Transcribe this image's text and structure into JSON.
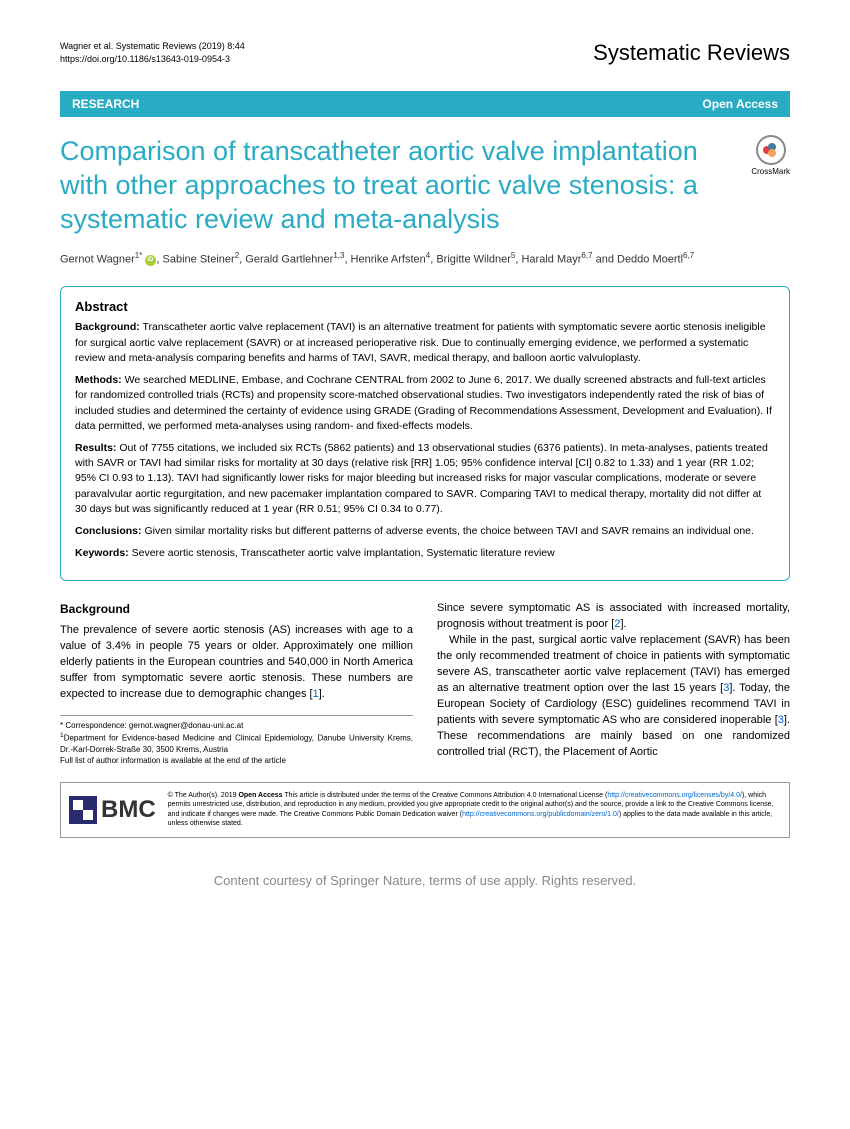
{
  "header": {
    "citation_line1": "Wagner et al. Systematic Reviews          (2019) 8:44",
    "citation_line2": "https://doi.org/10.1186/s13643-019-0954-3",
    "journal": "Systematic Reviews"
  },
  "badge": {
    "left": "RESEARCH",
    "right": "Open Access"
  },
  "crossmark_label": "CrossMark",
  "title": "Comparison of transcatheter aortic valve implantation with other approaches to treat aortic valve stenosis: a systematic review and meta-analysis",
  "authors_html": "Gernot Wagner<sup>1*</sup> <span class='orcid'></span>, Sabine Steiner<sup>2</sup>, Gerald Gartlehner<sup>1,3</sup>, Henrike Arfsten<sup>4</sup>, Brigitte Wildner<sup>5</sup>, Harald Mayr<sup>6,7</sup> and Deddo Moertl<sup>6,7</sup>",
  "abstract": {
    "heading": "Abstract",
    "background_label": "Background:",
    "background": "Transcatheter aortic valve replacement (TAVI) is an alternative treatment for patients with symptomatic severe aortic stenosis ineligible for surgical aortic valve replacement (SAVR) or at increased perioperative risk. Due to continually emerging evidence, we performed a systematic review and meta-analysis comparing benefits and harms of TAVI, SAVR, medical therapy, and balloon aortic valvuloplasty.",
    "methods_label": "Methods:",
    "methods": "We searched MEDLINE, Embase, and Cochrane CENTRAL from 2002 to June 6, 2017. We dually screened abstracts and full-text articles for randomized controlled trials (RCTs) and propensity score-matched observational studies. Two investigators independently rated the risk of bias of included studies and determined the certainty of evidence using GRADE (Grading of Recommendations Assessment, Development and Evaluation). If data permitted, we performed meta-analyses using random- and fixed-effects models.",
    "results_label": "Results:",
    "results": "Out of 7755 citations, we included six RCTs (5862 patients) and 13 observational studies (6376 patients). In meta-analyses, patients treated with SAVR or TAVI had similar risks for mortality at 30 days (relative risk [RR] 1.05; 95% confidence interval [CI] 0.82 to 1.33) and 1 year (RR 1.02; 95% CI 0.93 to 1.13). TAVI had significantly lower risks for major bleeding but increased risks for major vascular complications, moderate or severe paravalvular aortic regurgitation, and new pacemaker implantation compared to SAVR. Comparing TAVI to medical therapy, mortality did not differ at 30 days but was significantly reduced at 1 year (RR 0.51; 95% CI 0.34 to 0.77).",
    "conclusions_label": "Conclusions:",
    "conclusions": "Given similar mortality risks but different patterns of adverse events, the choice between TAVI and SAVR remains an individual one.",
    "keywords_label": "Keywords:",
    "keywords": "Severe aortic stenosis, Transcatheter aortic valve implantation, Systematic literature review"
  },
  "body": {
    "section_heading": "Background",
    "col1_p1": "The prevalence of severe aortic stenosis (AS) increases with age to a value of 3.4% in people 75 years or older. Approximately one million elderly patients in the European countries and 540,000 in North America suffer from symptomatic severe aortic stenosis. These numbers are expected to increase due to demographic changes [",
    "col1_ref1": "1",
    "col1_p1_end": "].",
    "col2_p1": "Since severe symptomatic AS is associated with increased mortality, prognosis without treatment is poor [",
    "col2_ref2": "2",
    "col2_p1_end": "].",
    "col2_p2_a": "While in the past, surgical aortic valve replacement (SAVR) has been the only recommended treatment of choice in patients with symptomatic severe AS, transcatheter aortic valve replacement (TAVI) has emerged as an alternative treatment option over the last 15 years [",
    "col2_ref3a": "3",
    "col2_p2_b": "]. Today, the European Society of Cardiology (ESC) guidelines recommend TAVI in patients with severe symptomatic AS who are considered inoperable [",
    "col2_ref3b": "3",
    "col2_p2_c": "]. These recommendations are mainly based on one randomized controlled trial (RCT), the Placement of Aortic"
  },
  "correspondence": {
    "line1": "* Correspondence: gernot.wagner@donau-uni.ac.at",
    "line2_sup": "1",
    "line2": "Department for Evidence-based Medicine and Clinical Epidemiology, Danube University Krems, Dr.-Karl-Dorrek-Straße 30, 3500 Krems, Austria",
    "line3": "Full list of author information is available at the end of the article"
  },
  "license": {
    "bmc": "BMC",
    "text_a": "© The Author(s). 2019 ",
    "text_b": "Open Access",
    "text_c": " This article is distributed under the terms of the Creative Commons Attribution 4.0 International License (",
    "link1": "http://creativecommons.org/licenses/by/4.0/",
    "text_d": "), which permits unrestricted use, distribution, and reproduction in any medium, provided you give appropriate credit to the original author(s) and the source, provide a link to the Creative Commons license, and indicate if changes were made. The Creative Commons Public Domain Dedication waiver (",
    "link2": "http://creativecommons.org/publicdomain/zero/1.0/",
    "text_e": ") applies to the data made available in this article, unless otherwise stated."
  },
  "footer": "Content courtesy of Springer Nature, terms of use apply. Rights reserved.",
  "colors": {
    "accent": "#29abc4",
    "link": "#0066cc"
  }
}
